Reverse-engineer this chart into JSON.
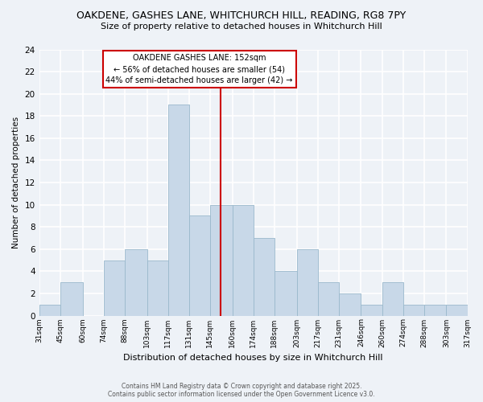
{
  "title1": "OAKDENE, GASHES LANE, WHITCHURCH HILL, READING, RG8 7PY",
  "title2": "Size of property relative to detached houses in Whitchurch Hill",
  "xlabel": "Distribution of detached houses by size in Whitchurch Hill",
  "ylabel": "Number of detached properties",
  "bin_edges": [
    31,
    45,
    60,
    74,
    88,
    103,
    117,
    131,
    145,
    160,
    174,
    188,
    203,
    217,
    231,
    246,
    260,
    274,
    288,
    303,
    317
  ],
  "counts": [
    1,
    3,
    0,
    5,
    6,
    5,
    19,
    9,
    10,
    10,
    7,
    4,
    6,
    3,
    2,
    1,
    3,
    1,
    1,
    1
  ],
  "bar_color": "#c8d8e8",
  "bar_edge_color": "#9ab8cc",
  "property_size": 152,
  "vline_color": "#cc0000",
  "annotation_title": "OAKDENE GASHES LANE: 152sqm",
  "annotation_line1": "← 56% of detached houses are smaller (54)",
  "annotation_line2": "44% of semi-detached houses are larger (42) →",
  "annotation_box_color": "#ffffff",
  "annotation_box_edge_color": "#cc0000",
  "ylim": [
    0,
    24
  ],
  "yticks": [
    0,
    2,
    4,
    6,
    8,
    10,
    12,
    14,
    16,
    18,
    20,
    22,
    24
  ],
  "footer1": "Contains HM Land Registry data © Crown copyright and database right 2025.",
  "footer2": "Contains public sector information licensed under the Open Government Licence v3.0.",
  "bg_color": "#eef2f7",
  "grid_color": "#ffffff"
}
